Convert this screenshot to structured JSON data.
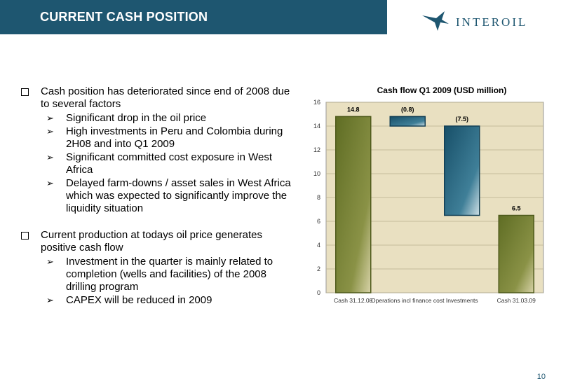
{
  "header": {
    "title": "CURRENT CASH POSITION",
    "logo_text": "INTEROIL"
  },
  "bullets": [
    {
      "text": "Cash position has deteriorated since end of 2008 due to several factors",
      "sub": [
        "Significant drop in the oil price",
        "High investments in Peru and Colombia during 2H08 and into Q1 2009",
        "Significant committed cost exposure in West Africa",
        "Delayed farm-downs / asset sales in West Africa which was expected to significantly improve the liquidity situation"
      ]
    },
    {
      "text": "Current production at todays oil price generates positive cash flow",
      "sub": [
        "Investment in the quarter is mainly related to completion (wells and facilities) of the 2008 drilling program",
        "CAPEX will be reduced in 2009"
      ]
    }
  ],
  "page_number": "10",
  "chart_data": {
    "type": "bar",
    "subtype": "waterfall",
    "title": "Cash flow Q1 2009 (USD million)",
    "categories": [
      "Cash 31.12.08",
      "Operations incl finance cost",
      "Investments",
      "Cash 31.03.09"
    ],
    "values": [
      14.8,
      -0.8,
      -7.5,
      6.5
    ],
    "data_labels": [
      "14.8",
      "(0.8)",
      "(7.5)",
      "6.5"
    ],
    "bar_kinds": [
      "total",
      "delta",
      "delta",
      "total"
    ],
    "ylim": [
      0,
      16
    ],
    "yticks": [
      "0",
      "2",
      "4",
      "6",
      "8",
      "10",
      "12",
      "14",
      "16"
    ],
    "grid": true,
    "colors": {
      "total": "#6b7a2e",
      "delta": "#1f5e78",
      "plot_bg": "#e9e0c1"
    }
  }
}
